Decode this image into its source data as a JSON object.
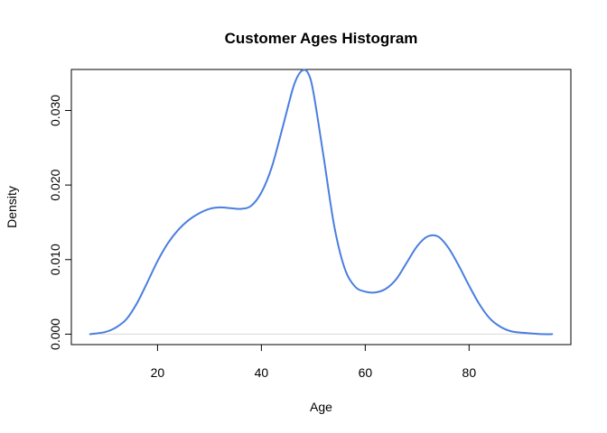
{
  "chart_data": {
    "type": "line",
    "title": "Customer Ages Histogram",
    "xlabel": "Age",
    "ylabel": "Density",
    "xlim": [
      3.4,
      99.6
    ],
    "ylim": [
      -0.0014,
      0.0355
    ],
    "x_ticks": [
      20,
      40,
      60,
      80
    ],
    "x_tick_labels": [
      "20",
      "40",
      "60",
      "80"
    ],
    "y_ticks": [
      0.0,
      0.01,
      0.02,
      0.03
    ],
    "y_tick_labels": [
      "0.000",
      "0.010",
      "0.020",
      "0.030"
    ],
    "grid": false,
    "baseline": 0,
    "colors": {
      "line": "#4a7ee0",
      "baseline": "#d9d9d9",
      "axis": "#000000"
    },
    "series": [
      {
        "x": [
          7,
          10,
          12,
          14,
          16,
          18,
          20,
          22,
          24,
          26,
          28,
          30,
          32,
          34,
          36,
          38,
          40,
          42,
          44,
          46,
          47,
          48,
          49,
          50,
          52,
          54,
          56,
          58,
          60,
          62,
          64,
          66,
          68,
          70,
          72,
          74,
          76,
          78,
          80,
          82,
          84,
          86,
          88,
          90,
          92,
          94,
          96
        ],
        "y": [
          0.0,
          0.0003,
          0.0009,
          0.002,
          0.0041,
          0.0069,
          0.0098,
          0.0122,
          0.014,
          0.0153,
          0.0162,
          0.0168,
          0.017,
          0.0169,
          0.0168,
          0.0172,
          0.019,
          0.0224,
          0.0275,
          0.0328,
          0.0346,
          0.0354,
          0.035,
          0.0325,
          0.0237,
          0.0146,
          0.0089,
          0.0064,
          0.0057,
          0.0056,
          0.0061,
          0.0074,
          0.0096,
          0.0118,
          0.0131,
          0.0131,
          0.0116,
          0.0092,
          0.0065,
          0.004,
          0.0021,
          0.001,
          0.0004,
          0.0002,
          0.0001,
          0.0,
          0.0
        ]
      }
    ]
  }
}
